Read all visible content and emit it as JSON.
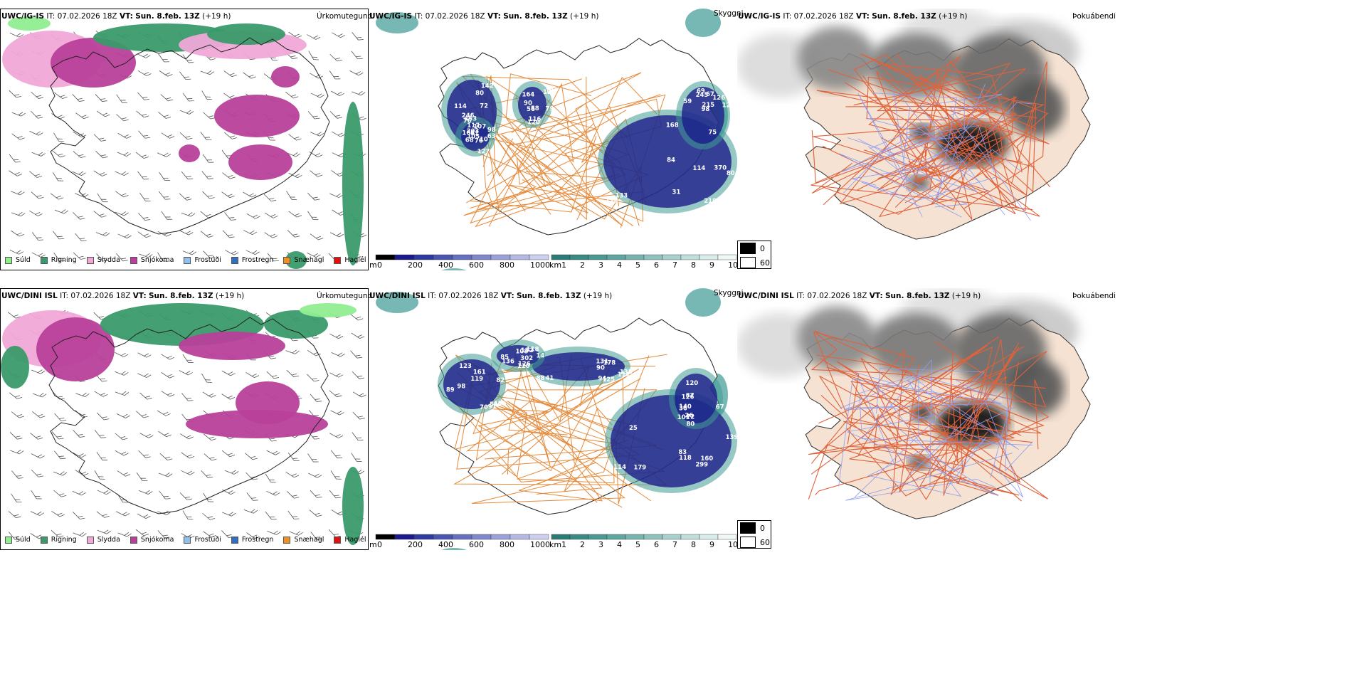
{
  "rows": [
    {
      "model": "UWC/IG-IS",
      "init_label": "IT:",
      "init_value": "07.02.2026 18Z",
      "valid_label": "VT:",
      "valid_value": "Sun. 8.feb. 13Z",
      "offset": "(+19 h)"
    },
    {
      "model": "UWC/DINI ISL",
      "init_label": "IT:",
      "init_value": "07.02.2026 18Z",
      "valid_label": "VT:",
      "valid_value": "Sun. 8.feb. 13Z",
      "offset": "(+19 h)"
    }
  ],
  "panel_titles": {
    "precip": "Úrkomutegund",
    "cloud": "Skyggni",
    "fog": "Þokuábendi"
  },
  "precip_legend": [
    {
      "label": "Súld",
      "color": "#90ee90"
    },
    {
      "label": "Rigning",
      "color": "#3a9a6a"
    },
    {
      "label": "Slydda",
      "color": "#f0a8d8"
    },
    {
      "label": "Snjókoma",
      "color": "#b8409a"
    },
    {
      "label": "Frostúði",
      "color": "#8ec0f0"
    },
    {
      "label": "Frostregn",
      "color": "#3070c0"
    },
    {
      "label": "Snæhagl",
      "color": "#f09020"
    },
    {
      "label": "Haglél",
      "color": "#e01010"
    }
  ],
  "ceiling_bar": {
    "unit": "m",
    "ticks": [
      "0",
      "200",
      "400",
      "600",
      "800",
      "1000"
    ]
  },
  "vis_bar": {
    "unit": "km",
    "ticks": [
      "1",
      "2",
      "3",
      "4",
      "5",
      "6",
      "7",
      "8",
      "9",
      "10"
    ]
  },
  "fog_legend": [
    {
      "label": "0",
      "color": "#000000"
    },
    {
      "label": "60",
      "color": "#ffffff"
    }
  ],
  "cloud_labels": [
    [
      "117",
      "56",
      "370",
      "215",
      "68",
      "246",
      "90",
      "133",
      "128",
      "63",
      "81",
      "164",
      "80",
      "75",
      "105",
      "72",
      "122",
      "84",
      "69",
      "127",
      "76",
      "116",
      "110",
      "59",
      "104",
      "80",
      "79",
      "114",
      "67",
      "107",
      "142",
      "120",
      "219",
      "245",
      "203",
      "453",
      "189",
      "168",
      "98",
      "98",
      "76",
      "58",
      "31",
      "126",
      "10",
      "114"
    ],
    [
      "161",
      "131",
      "299",
      "101",
      "302",
      "89",
      "111",
      "179",
      "72",
      "108",
      "82",
      "94",
      "139",
      "140",
      "118",
      "91",
      "88",
      "83",
      "80",
      "85",
      "70",
      "125",
      "118",
      "87",
      "132",
      "597",
      "178",
      "114",
      "126",
      "120",
      "119",
      "135",
      "160",
      "120",
      "126",
      "105",
      "90",
      "25",
      "26",
      "136",
      "98",
      "41",
      "67",
      "36",
      "14",
      "123"
    ]
  ],
  "colors": {
    "land": "#f5e2d2",
    "road": "#e58a3a",
    "road_fog": "#e0623a",
    "coast": "#111111",
    "river": "#8c9cf0",
    "ceiling_dark": "#1b1d8a",
    "vis_teal": "#3f9a94"
  }
}
